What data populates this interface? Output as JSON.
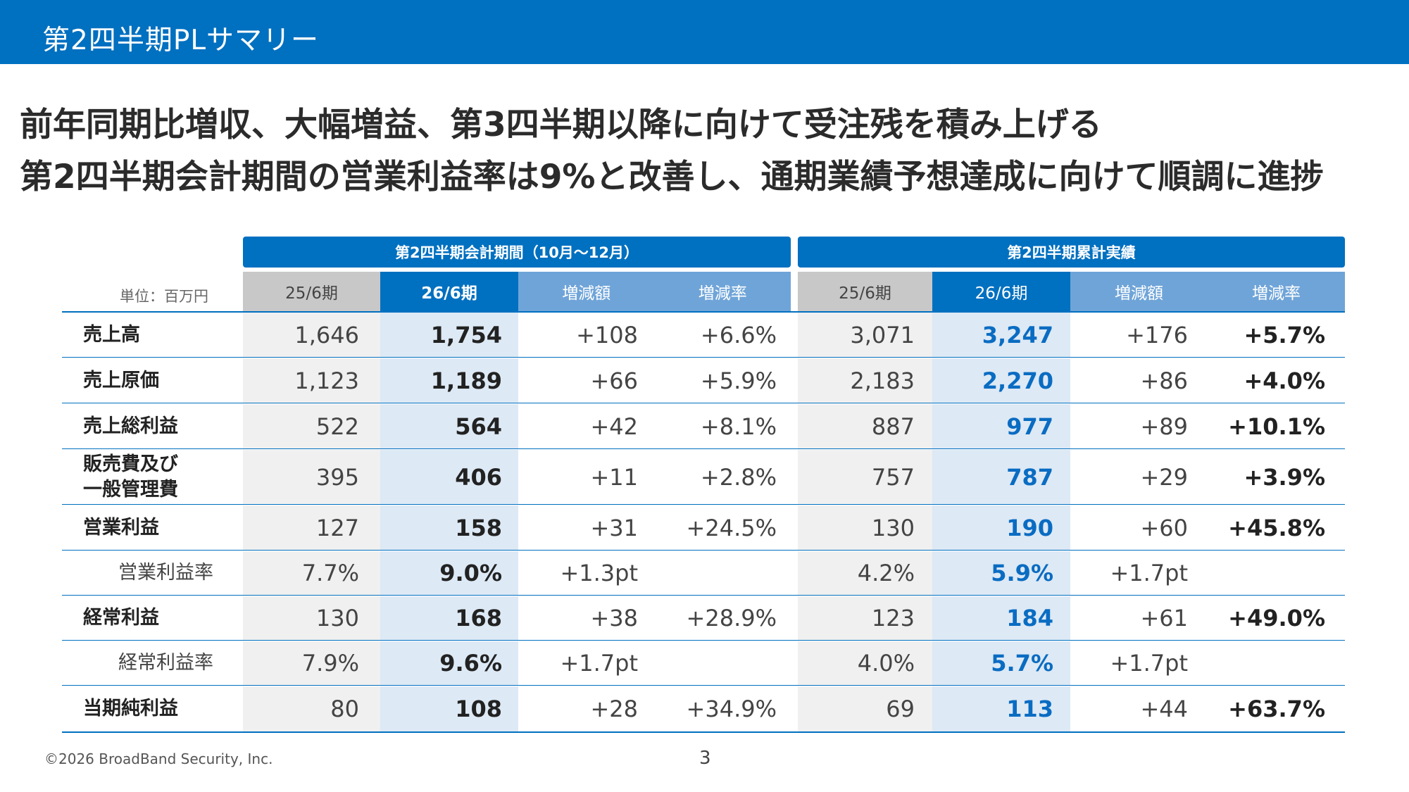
{
  "header": {
    "title": "第2四半期PLサマリー"
  },
  "headlines": [
    "前年同期比増収、大幅増益、第3四半期以降に向けて受注残を積み上げる",
    "第2四半期会計期間の営業利益率は9%と改善し、通期業績予想達成に向けて順調に進捗"
  ],
  "table": {
    "unit": "単位：百万円",
    "groups": [
      "第2四半期会計期間（10月～12月）",
      "第2四半期累計実績"
    ],
    "columns": [
      "25/6期",
      "26/6期",
      "増減額",
      "増減率",
      "25/6期",
      "26/6期",
      "増減額",
      "増減率"
    ],
    "rows": [
      {
        "label": "売上高",
        "values": [
          "1,646",
          "1,754",
          "+108",
          "+6.6%",
          "3,071",
          "3,247",
          "+176",
          "+5.7%"
        ]
      },
      {
        "label": "売上原価",
        "values": [
          "1,123",
          "1,189",
          "+66",
          "+5.9%",
          "2,183",
          "2,270",
          "+86",
          "+4.0%"
        ]
      },
      {
        "label": "売上総利益",
        "values": [
          "522",
          "564",
          "+42",
          "+8.1%",
          "887",
          "977",
          "+89",
          "+10.1%"
        ]
      },
      {
        "label": "販売費及び\n一般管理費",
        "values": [
          "395",
          "406",
          "+11",
          "+2.8%",
          "757",
          "787",
          "+29",
          "+3.9%"
        ]
      },
      {
        "label": "営業利益",
        "values": [
          "127",
          "158",
          "+31",
          "+24.5%",
          "130",
          "190",
          "+60",
          "+45.8%"
        ]
      },
      {
        "label": "営業利益率",
        "values": [
          "7.7%",
          "9.0%",
          "+1.3pt",
          "",
          "4.2%",
          "5.9%",
          "+1.7pt",
          ""
        ]
      },
      {
        "label": "経常利益",
        "values": [
          "130",
          "168",
          "+38",
          "+28.9%",
          "123",
          "184",
          "+61",
          "+49.0%"
        ]
      },
      {
        "label": "経常利益率",
        "values": [
          "7.9%",
          "9.6%",
          "+1.7pt",
          "",
          "4.0%",
          "5.7%",
          "+1.7pt",
          ""
        ]
      },
      {
        "label": "当期純利益",
        "values": [
          "80",
          "108",
          "+28",
          "+34.9%",
          "69",
          "113",
          "+44",
          "+63.7%"
        ]
      }
    ]
  },
  "footer": {
    "copyright": "©2026 BroadBand Security, Inc.",
    "page": "3"
  },
  "colors": {
    "brand": "#0070c0",
    "highlight": "#0a6cc2"
  }
}
